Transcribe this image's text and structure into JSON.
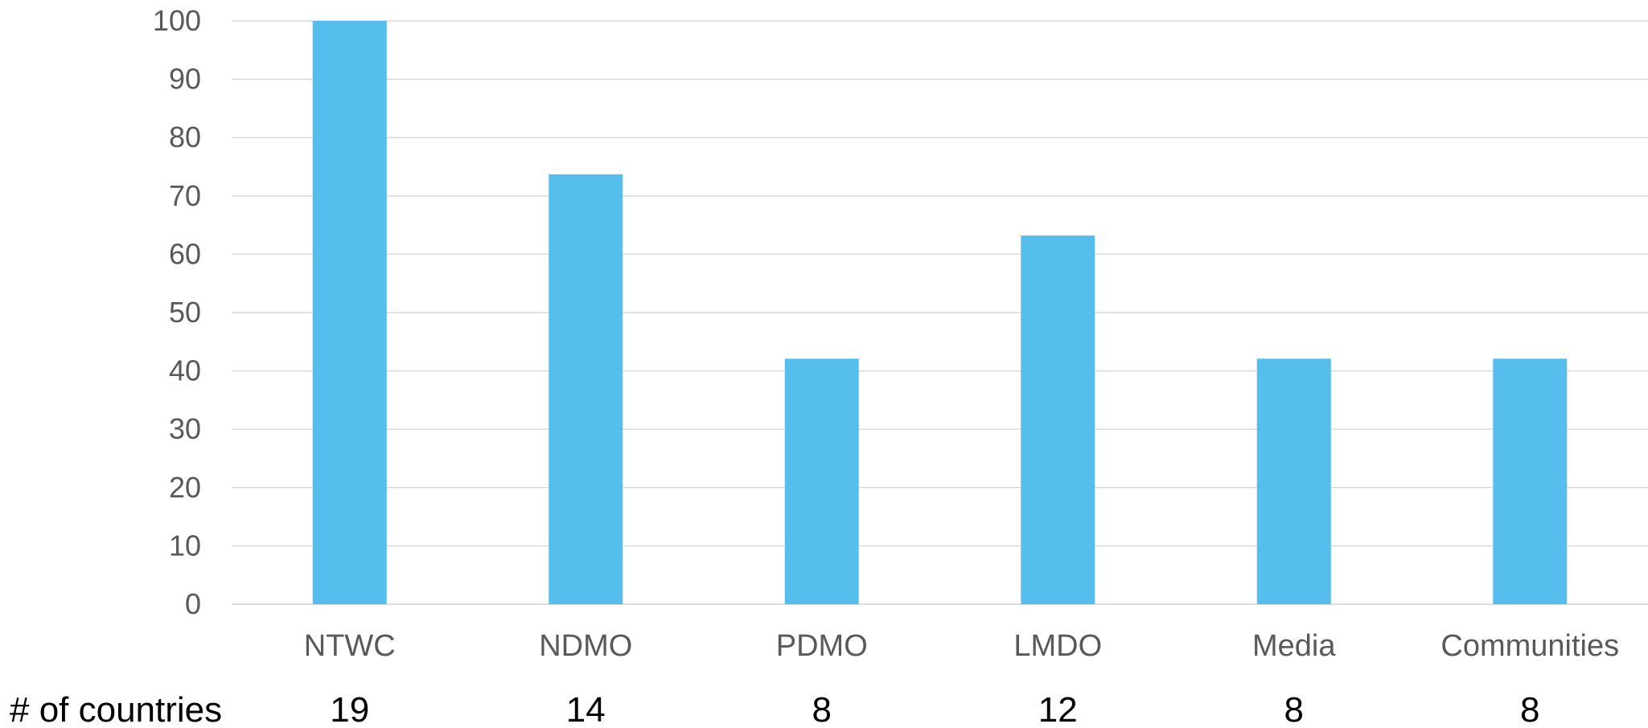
{
  "chart_data": {
    "type": "bar",
    "categories": [
      "NTWC",
      "NDMO",
      "PDMO",
      "LMDO",
      "Media",
      "Communities"
    ],
    "values": [
      100,
      73.7,
      42.1,
      63.2,
      42.1,
      42.1
    ],
    "ylim": [
      0,
      100
    ],
    "yticks": [
      0,
      10,
      20,
      30,
      40,
      50,
      60,
      70,
      80,
      90,
      100
    ],
    "grid": true,
    "bar_color": "#56BEEC",
    "title": "",
    "xlabel": "",
    "ylabel": "",
    "table_row": {
      "label": "# of countries",
      "values": [
        "19",
        "14",
        "8",
        "12",
        "8",
        "8"
      ]
    }
  }
}
